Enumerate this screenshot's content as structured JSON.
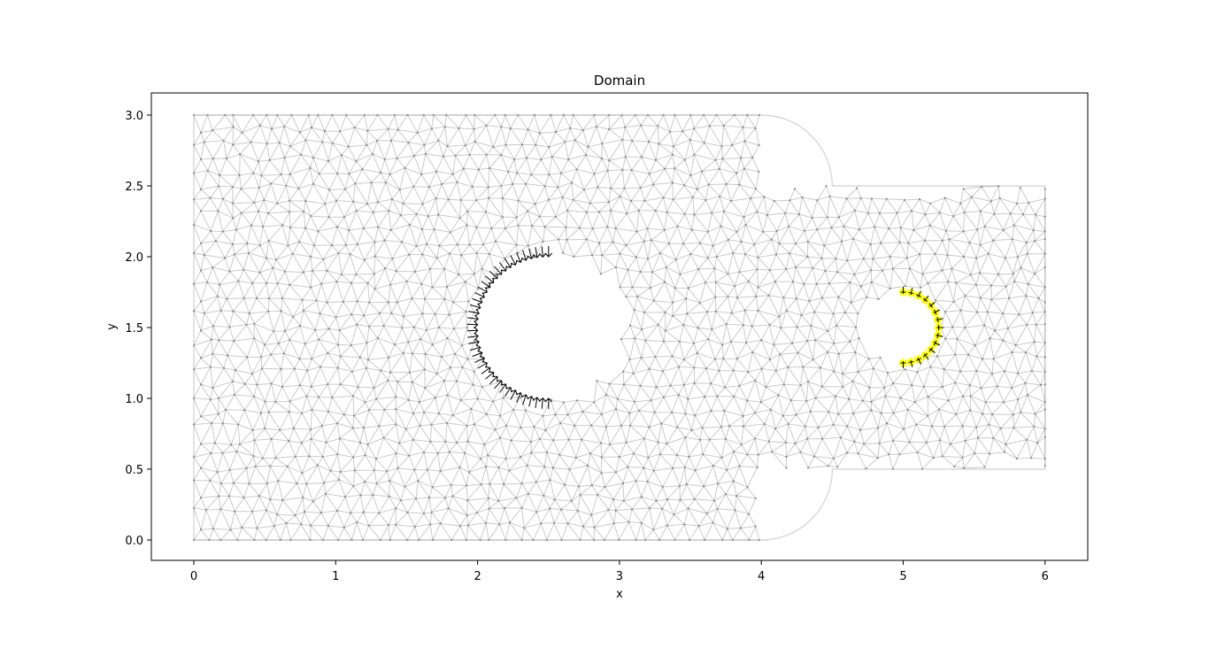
{
  "chart_data": {
    "type": "mesh",
    "title": "Domain",
    "xlabel": "x",
    "ylabel": "y",
    "xlim": [
      -0.3,
      6.3
    ],
    "ylim": [
      -0.15,
      3.15
    ],
    "xticks": [
      0,
      1,
      2,
      3,
      4,
      5,
      6
    ],
    "xtick_labels": [
      "0",
      "1",
      "2",
      "3",
      "4",
      "5",
      "6"
    ],
    "yticks": [
      0.0,
      0.5,
      1.0,
      1.5,
      2.0,
      2.5,
      3.0
    ],
    "ytick_labels": [
      "0.0",
      "0.5",
      "1.0",
      "1.5",
      "2.0",
      "2.5",
      "3.0"
    ],
    "grid": false,
    "domain": {
      "main_rect": {
        "x": [
          0,
          4
        ],
        "y": [
          0,
          3
        ]
      },
      "channel_rect": {
        "x": [
          4,
          6
        ],
        "y": [
          0.5,
          2.5
        ]
      },
      "fillet_radius": 0.5,
      "holes": [
        {
          "center": [
            2.5,
            1.5
          ],
          "radius": 0.5
        },
        {
          "center": [
            5.0,
            1.5
          ],
          "radius": 0.25
        }
      ]
    },
    "mesh_color": "#8c8c8c",
    "arrow_sets": [
      {
        "center": [
          2.5,
          1.5
        ],
        "radius": 0.5,
        "angle_from_deg": 90,
        "angle_to_deg": 270,
        "count": 40,
        "color": "#000000",
        "glyph": "arrow"
      },
      {
        "center": [
          5.0,
          1.5
        ],
        "radius": 0.25,
        "angle_from_deg": -90,
        "angle_to_deg": 90,
        "count": 15,
        "color": "#ffff00",
        "glyph": "tick"
      }
    ]
  }
}
